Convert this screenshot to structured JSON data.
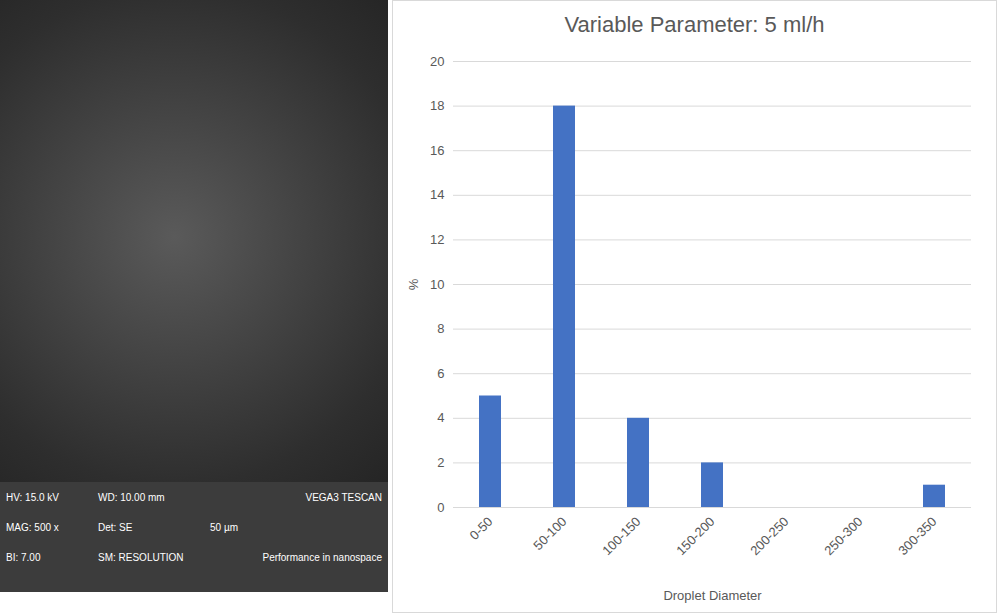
{
  "chart_data": {
    "type": "bar",
    "title": "Variable Parameter: 5 ml/h",
    "xlabel": "Droplet Diameter",
    "ylabel": "%",
    "categories": [
      "0-50",
      "50-100",
      "100-150",
      "150-200",
      "200-250",
      "250-300",
      "300-350"
    ],
    "values": [
      5,
      18,
      4,
      2,
      0,
      0,
      1
    ],
    "color": "#4472c4",
    "ylim": [
      0,
      20
    ],
    "yticks": [
      0,
      2,
      4,
      6,
      8,
      10,
      12,
      14,
      16,
      18,
      20
    ],
    "grid": true
  },
  "micrograph": {
    "info_bar": {
      "rows": [
        [
          "HV: 15.0 kV",
          "WD: 10.00 mm",
          "VEGA3 TESCAN"
        ],
        [
          "MAG: 500 x",
          "Det: SE",
          "50 µm"
        ],
        [
          "BI: 7.00",
          "SM: RESOLUTION",
          "Performance in nanospace"
        ]
      ]
    }
  }
}
